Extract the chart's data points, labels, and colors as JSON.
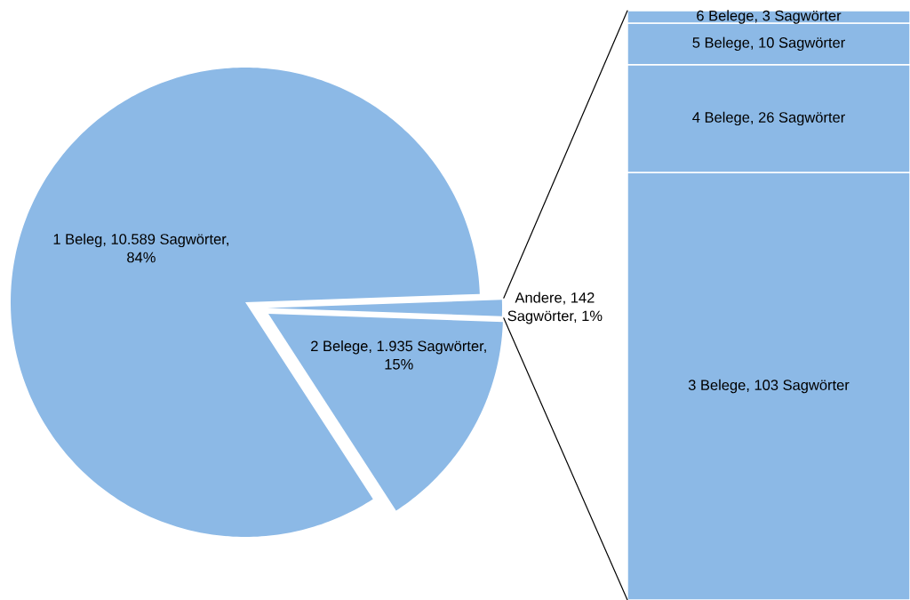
{
  "chart_data": [
    {
      "type": "pie",
      "categories": [
        "1 Beleg, 10.589 Sagwörter, 84%",
        "2 Belege, 1.935 Sagwörter, 15%",
        "Andere, 142 Sagwörter, 1%"
      ],
      "values": [
        10589,
        1935,
        142
      ],
      "colors": [
        "#8cb9e6",
        "#8cb9e6",
        "#8cb9e6"
      ]
    },
    {
      "type": "bar",
      "stacked": true,
      "categories": [
        null
      ],
      "series": [
        {
          "name": "3 Belege,",
          "color": "#8cb9e6",
          "values": [
            103
          ],
          "value_labels": [
            "103 Sagwörter"
          ]
        },
        {
          "name": "4 Belege,",
          "color": "#8cb9e6",
          "values": [
            26
          ],
          "value_labels": [
            "26 Sagwörter"
          ]
        },
        {
          "name": "5 Belege,",
          "color": "#8cb9e6",
          "values": [
            10
          ],
          "value_labels": [
            "10 Sagwörter"
          ]
        },
        {
          "name": "6 Belege,",
          "color": "#8cb9e6",
          "values": [
            3
          ],
          "value_labels": [
            "3 Sagwörter"
          ]
        }
      ]
    }
  ]
}
